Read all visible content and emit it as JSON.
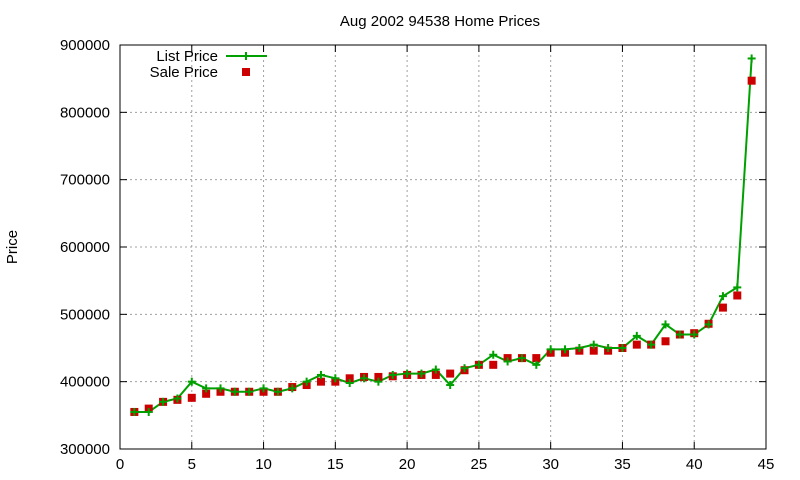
{
  "chart_data": {
    "type": "line",
    "title": "Aug 2002 94538 Home Prices",
    "xlabel": "",
    "ylabel": "Price",
    "xlim": [
      0,
      45
    ],
    "ylim": [
      300000,
      900000
    ],
    "x_ticks": [
      0,
      5,
      10,
      15,
      20,
      25,
      30,
      35,
      40,
      45
    ],
    "y_ticks": [
      300000,
      400000,
      500000,
      600000,
      700000,
      800000,
      900000
    ],
    "grid": true,
    "legend_position": "top-left",
    "x": [
      1,
      2,
      3,
      4,
      5,
      6,
      7,
      8,
      9,
      10,
      11,
      12,
      13,
      14,
      15,
      16,
      17,
      18,
      19,
      20,
      21,
      22,
      23,
      24,
      25,
      26,
      27,
      28,
      29,
      30,
      31,
      32,
      33,
      34,
      35,
      36,
      37,
      38,
      39,
      40,
      41,
      42,
      43,
      44
    ],
    "series": [
      {
        "name": "List Price",
        "style": "linespoints",
        "color": "#00a000",
        "marker": "plus",
        "values": [
          355000,
          355000,
          370000,
          375000,
          400000,
          390000,
          390000,
          385000,
          385000,
          390000,
          385000,
          390000,
          400000,
          410000,
          405000,
          398000,
          405000,
          400000,
          410000,
          412000,
          412000,
          418000,
          395000,
          420000,
          425000,
          440000,
          430000,
          435000,
          425000,
          448000,
          448000,
          450000,
          455000,
          450000,
          450000,
          468000,
          455000,
          485000,
          470000,
          470000,
          485000,
          527000,
          540000,
          880000
        ]
      },
      {
        "name": "Sale Price",
        "style": "points",
        "color": "#cc0000",
        "marker": "square",
        "values": [
          355000,
          360000,
          370000,
          373000,
          376000,
          382000,
          385000,
          385000,
          385000,
          385000,
          385000,
          392000,
          395000,
          400000,
          400000,
          405000,
          407000,
          407000,
          408000,
          410000,
          410000,
          410000,
          412000,
          417000,
          425000,
          425000,
          435000,
          435000,
          435000,
          443000,
          443000,
          446000,
          446000,
          446000,
          450000,
          455000,
          455000,
          460000,
          470000,
          472000,
          486000,
          510000,
          528000,
          847000
        ]
      }
    ]
  }
}
